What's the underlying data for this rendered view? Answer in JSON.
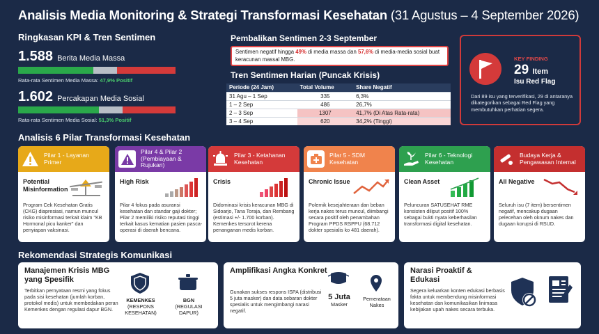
{
  "header": {
    "title": "Analisis Media Monitoring & Strategi Transformasi Kesehatan",
    "date": "(31 Agustus – 4 September 2026)"
  },
  "kpi": {
    "heading": "Ringkasan KPI & Tren Sentimen",
    "media_massa": {
      "value": "1.588",
      "label": "Berita Media Massa",
      "avg_prefix": "Rata-rata Sentimen Media Massa:",
      "avg_value": "47,9% Positif",
      "positive": 47.9
    },
    "media_sosial": {
      "value": "1.602",
      "label": "Percakapan Media Sosial",
      "avg_prefix": "Rata-rata Sentimen Media Sosial:",
      "avg_value": "51,3% Positif",
      "positive": 51.3
    },
    "colors": {
      "positive": "#2aa84a",
      "neutral": "#b8bec6",
      "negative": "#d43a3a"
    }
  },
  "reversal": {
    "heading": "Pembalikan Sentimen 2-3 September",
    "text_a": "Sentimen negatif hingga ",
    "val_a": "49%",
    "text_b": " di media massa dan ",
    "val_b": "57,6%",
    "text_c": " di media-media sosial buat keracunan massal MBG."
  },
  "trend": {
    "heading": "Tren Sentimen Harian (Puncak Krisis)",
    "columns": [
      "Periode (24 Jam)",
      "Total Volume",
      "Share Negatif"
    ],
    "rows": [
      {
        "period": "31 Agu – 1 Sep",
        "volume": "335",
        "share": "6,3%"
      },
      {
        "period": "1 – 2 Sep",
        "volume": "486",
        "share": "26,7%"
      },
      {
        "period": "2 – 3 Sep",
        "volume": "1307",
        "share": "41,7% (Di Atas Rata-rata)"
      },
      {
        "period": "3 – 4 Sep",
        "volume": "620",
        "share": "34,2% (Tinggi)"
      }
    ]
  },
  "key_finding": {
    "label": "KEY FINDING",
    "number": "29",
    "unit": "Item",
    "subtitle": "Isu Red Flag",
    "desc": "Dari 89 isu yang terverifikasi, 29 di antaranya dikategorikan sebagai Red Flag yang membutuhkan perhatian segera.",
    "color": "#d43a3a"
  },
  "pillars": {
    "heading": "Analisis 6 Pilar Transformasi Kesehatan",
    "cards": [
      {
        "title": "Pilar 1 - Layanan Primer",
        "level": "Potential Misinformation",
        "desc": "Program Cek Kesehatan Gratis (CKG) diapresiasi, namun muncul risiko misinformasi terkait klaim \"KB Hormonal picu kanker\" dan penyiapan vaksinasi.",
        "color": "#e7a919",
        "icon": "warning-icon"
      },
      {
        "title": "Pilar 4 & Pilar 2 (Pembiayaan & Rujukan)",
        "level": "High Risk",
        "desc": "Pilar 4 fokus pada asuransi kesehatan dan standar gaji dokter; Pilar 2 memiliki risiko reputasi tinggi terkait kasus kematian pasien pasca-operasi di daerah bencana.",
        "color": "#7a3aa6",
        "icon": "alert-triangle-icon"
      },
      {
        "title": "Pilar 3 - Ketahanan Kesehatan",
        "level": "Crisis",
        "desc": "Didominasi krisis keracunan MBG di Sidoarjo, Tana Toraja, dan Rembang (estimasi +/- 1.700 korban). Kemenkes tersorot kerena penanganan medis korban.",
        "color": "#d43a3a",
        "icon": "siren-icon"
      },
      {
        "title": "Pilar 5 - SDM Kesehatan",
        "level": "Chronic Issue",
        "desc": "Polemik kesejahteraan dan beban kerja nakes terus muncul, diimbangi secara positif oleh penambahan Program PPDS RSPPU (68.712 dokter spesialis ko 481 daerah).",
        "color": "#f0834c",
        "icon": "medkit-icon"
      },
      {
        "title": "Pilar 6 - Teknologi Kesehatan",
        "level": "Clean Asset",
        "desc": "Peluncuran SATUSEHAT RME konsisten diliput positif 100% sebagai bukti nyata keberhasilan transformasi digital kesehatan.",
        "color": "#2ea04f",
        "icon": "hand-plant-icon"
      },
      {
        "title": "Budaya Kerja & Pengawasan Internal",
        "level": "All Negative",
        "desc": "Seluruh isu (7 item) bersentimen negatif, mencakup dugaan pelecehan oleh oknum nakes dan dugaan korupsi di RSUD.",
        "color": "#c42f2f",
        "icon": "cricket-bat-icon"
      }
    ]
  },
  "recommendations": {
    "heading": "Rekomendasi Strategis Komunikasi",
    "items": [
      {
        "title": "Manajemen Krisis MBG yang Spesifik",
        "desc": "Terbitkan pernyataan resmi yang fokus pada sisi kesehatan (jumlah korban, protokol medis) untuk membedakan peran Kemenkes dengan regulasi dapur BGN.",
        "icon1_title": "KEMENKES",
        "icon1_sub": "(RESPONS KESEHATAN)",
        "icon2_title": "BGN",
        "icon2_sub": "(REGULASI DAPUR)"
      },
      {
        "title": "Amplifikasi Angka Konkret",
        "desc": "Gunakan sukses respons ISPA (distribusi 5 juta masker) dan data sebaran dokter spesialis untuk mengimbangi narasi negatif.",
        "icon1_title": "5 Juta",
        "icon1_sub": "Masker",
        "icon2_title": "Pemerataan",
        "icon2_sub": "Nakes"
      },
      {
        "title": "Narasi Proaktif & Edukasi",
        "desc": "Segera keluarkan konten edukasi berbasis fakta untuk membendung misinformasi kesehatan dan komunikasikan linimasa kebijakan upah nakes secara terbuka."
      }
    ]
  }
}
